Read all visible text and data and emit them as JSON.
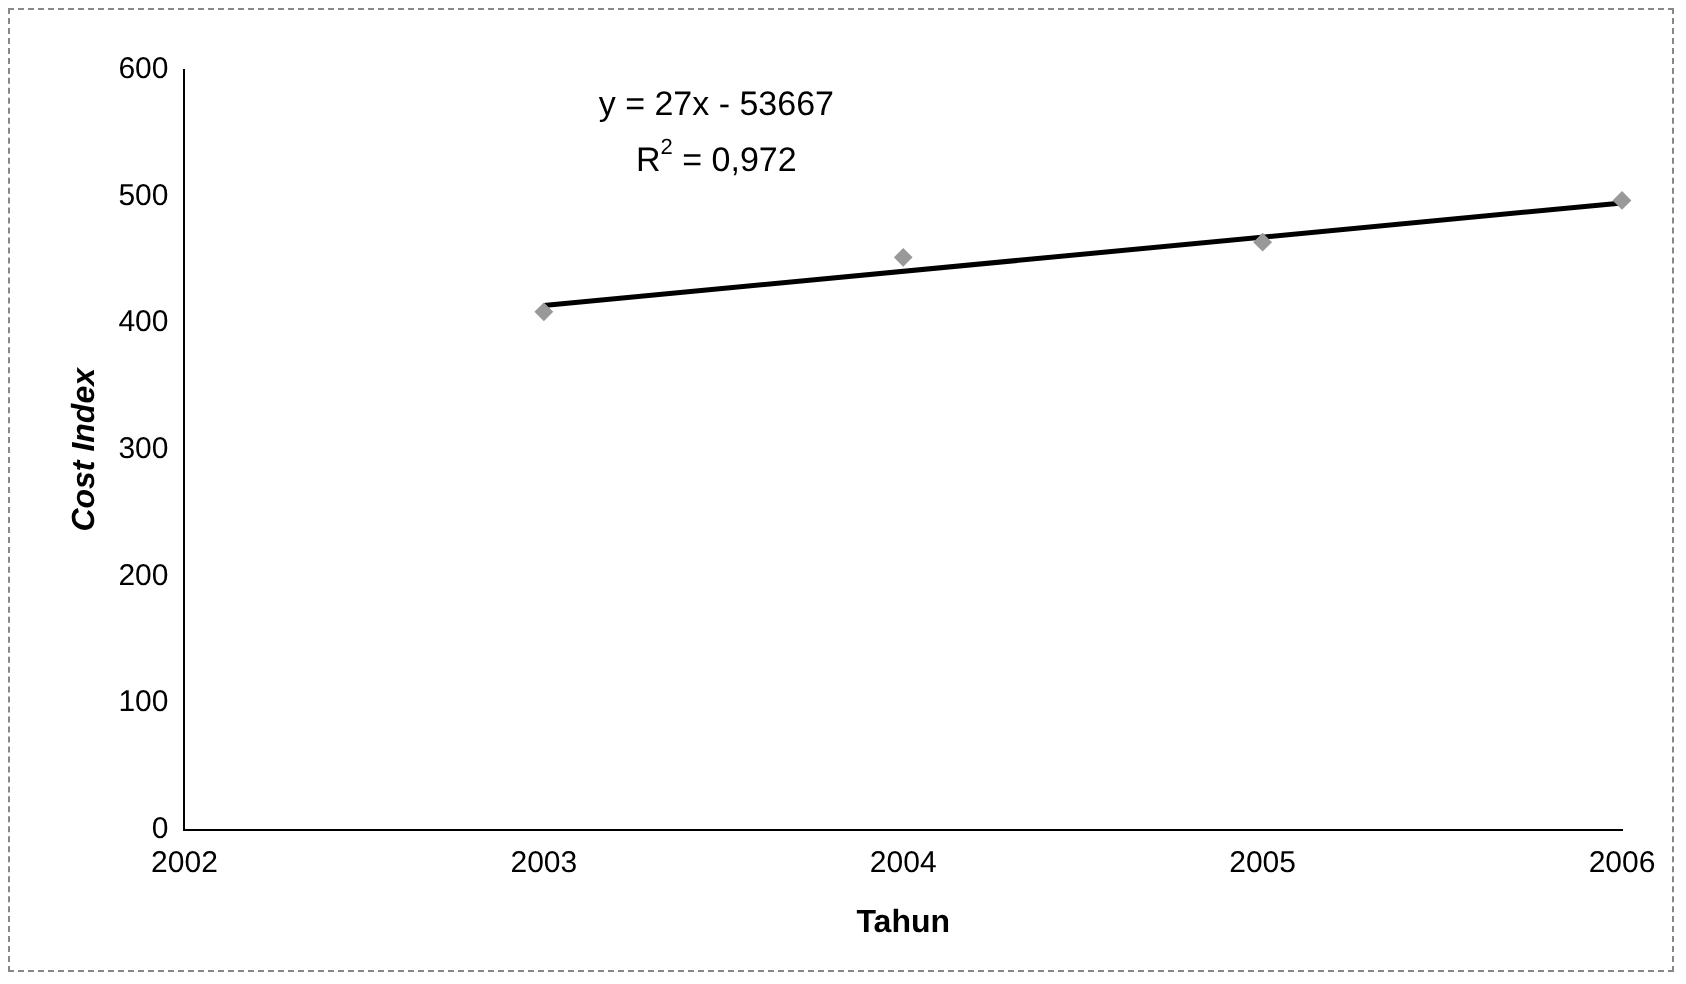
{
  "chart_data": {
    "type": "scatter",
    "xlabel": "Tahun",
    "ylabel": "Cost Index",
    "xlim": [
      2002,
      2006
    ],
    "xticks": [
      2002,
      2003,
      2004,
      2005,
      2006
    ],
    "ylim": [
      0,
      600
    ],
    "yticks": [
      0,
      100,
      200,
      300,
      400,
      500,
      600
    ],
    "grid": false,
    "legend": false,
    "series": [
      {
        "color": "#999999",
        "marker": "diamond",
        "x": [
          2003,
          2004,
          2005,
          2006
        ],
        "values": [
          409,
          452,
          464,
          497
        ]
      },
      {
        "type": "line",
        "color": "#000000",
        "marker": "none",
        "line_style": "solid",
        "x": [
          2003,
          2006
        ],
        "values": [
          414,
          495
        ]
      }
    ],
    "annotations": [
      "y = 27x - 53667",
      "R$^{2}$ = 0,972"
    ]
  }
}
